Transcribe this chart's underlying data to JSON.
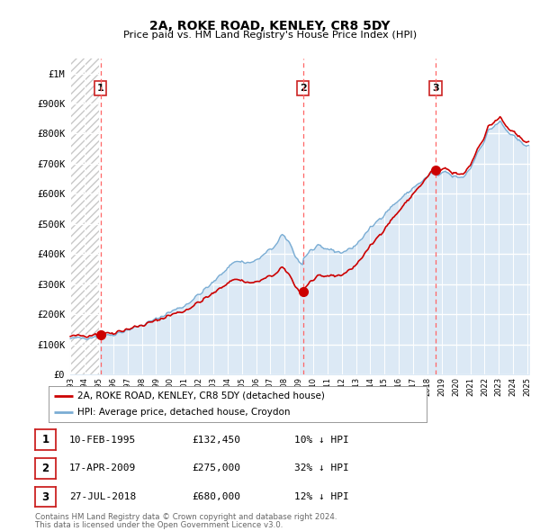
{
  "title": "2A, ROKE ROAD, KENLEY, CR8 5DY",
  "subtitle": "Price paid vs. HM Land Registry's House Price Index (HPI)",
  "legend_label_red": "2A, ROKE ROAD, KENLEY, CR8 5DY (detached house)",
  "legend_label_blue": "HPI: Average price, detached house, Croydon",
  "footer1": "Contains HM Land Registry data © Crown copyright and database right 2024.",
  "footer2": "This data is licensed under the Open Government Licence v3.0.",
  "transactions": [
    {
      "num": 1,
      "date_str": "10-FEB-1995",
      "date_x": 1995.11,
      "price": 132450,
      "pct": "10% ↓ HPI"
    },
    {
      "num": 2,
      "date_str": "17-APR-2009",
      "date_x": 2009.29,
      "price": 275000,
      "pct": "32% ↓ HPI"
    },
    {
      "num": 3,
      "date_str": "27-JUL-2018",
      "date_x": 2018.57,
      "price": 680000,
      "pct": "12% ↓ HPI"
    }
  ],
  "ylim": [
    0,
    1050000
  ],
  "xlim": [
    1992.8,
    2025.5
  ],
  "yticks": [
    0,
    100000,
    200000,
    300000,
    400000,
    500000,
    600000,
    700000,
    800000,
    900000,
    1000000
  ],
  "ytick_labels": [
    "£0",
    "£100K",
    "£200K",
    "£300K",
    "£400K",
    "£500K",
    "£600K",
    "£700K",
    "£800K",
    "£900K",
    "£1M"
  ],
  "xtick_years": [
    1993,
    1994,
    1995,
    1996,
    1997,
    1998,
    1999,
    2000,
    2001,
    2002,
    2003,
    2004,
    2005,
    2006,
    2007,
    2008,
    2009,
    2010,
    2011,
    2012,
    2013,
    2014,
    2015,
    2016,
    2017,
    2018,
    2019,
    2020,
    2021,
    2022,
    2023,
    2024,
    2025
  ],
  "bg_color": "#dce9f5",
  "grid_color": "#c8c8c8",
  "red_color": "#cc0000",
  "blue_color": "#7aadd4",
  "dashed_red": "#ff6666",
  "box_color": "#cc2222",
  "hatch_color": "#c8c8c8"
}
